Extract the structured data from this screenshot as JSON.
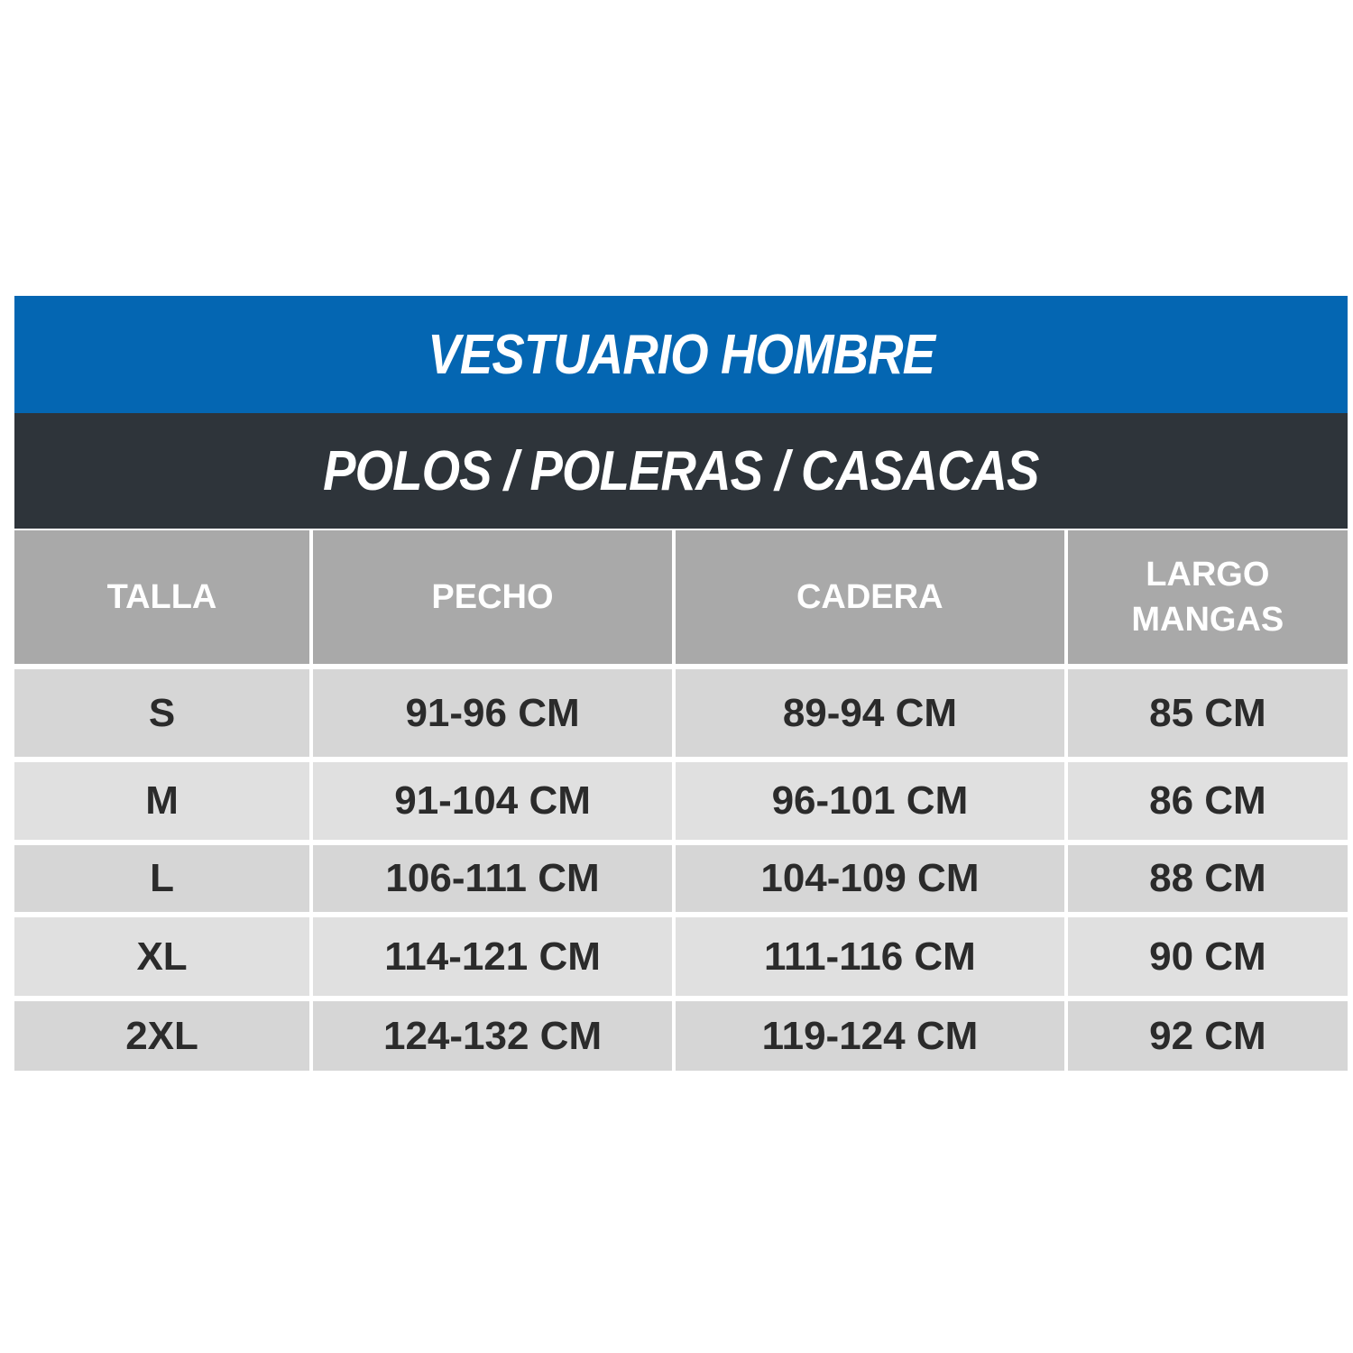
{
  "title": "VESTUARIO HOMBRE",
  "subtitle": "POLOS / POLERAS / CASACAS",
  "colors": {
    "title_band": "#0466b2",
    "subtitle_band": "#2e343a",
    "header": "#a9a9a9",
    "row_dark": "#d6d6d6",
    "row_light": "#e0e0e0"
  },
  "columns": [
    "TALLA",
    "PECHO",
    "CADERA",
    "LARGO MANGAS"
  ],
  "rows": [
    [
      "S",
      "91-96 CM",
      "89-94 CM",
      "85 CM"
    ],
    [
      "M",
      "91-104 CM",
      "96-101 CM",
      "86 CM"
    ],
    [
      "L",
      "106-111 CM",
      "104-109 CM",
      "88 CM"
    ],
    [
      "XL",
      "114-121 CM",
      "111-116 CM",
      "90 CM"
    ],
    [
      "2XL",
      "124-132 CM",
      "119-124 CM",
      "92 CM"
    ]
  ]
}
